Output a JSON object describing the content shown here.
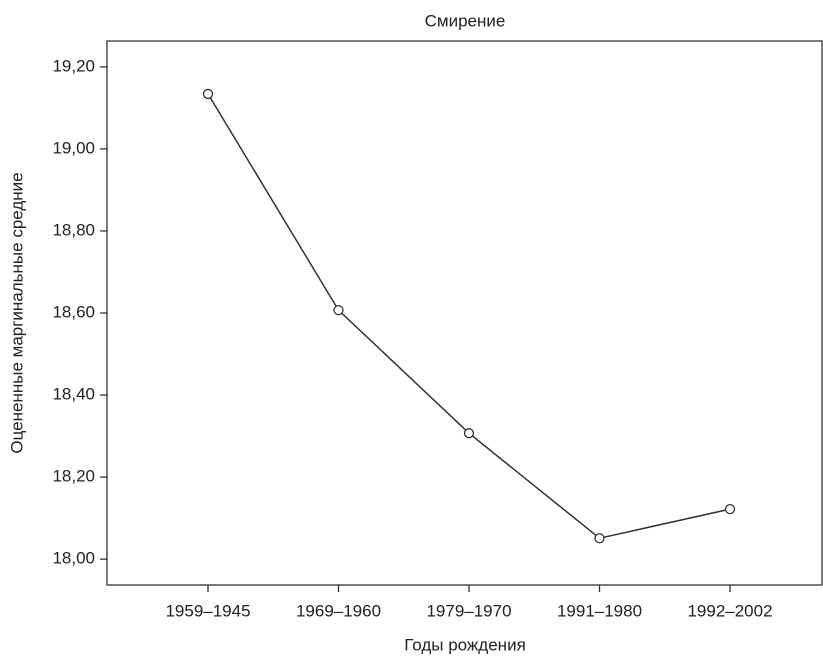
{
  "chart_data": {
    "type": "line",
    "title": "Смирение",
    "x_label": "Годы рождения",
    "y_label": "Оцененные маргинальные средние",
    "categories": [
      "1959–1945",
      "1969–1960",
      "1979–1970",
      "1991–1980",
      "1992–2002"
    ],
    "values": [
      19.134,
      18.607,
      18.307,
      18.051,
      18.122
    ],
    "color": "#333333",
    "ylim": [
      17.937,
      19.263
    ],
    "yticks": [
      {
        "value": 18.0,
        "label": "18,00"
      },
      {
        "value": 18.2,
        "label": "18,20"
      },
      {
        "value": 18.4,
        "label": "18,40"
      },
      {
        "value": 18.6,
        "label": "18,60"
      },
      {
        "value": 18.8,
        "label": "18,80"
      },
      {
        "value": 19.0,
        "label": "19,00"
      },
      {
        "value": 19.2,
        "label": "19,20"
      }
    ],
    "grid": false
  }
}
